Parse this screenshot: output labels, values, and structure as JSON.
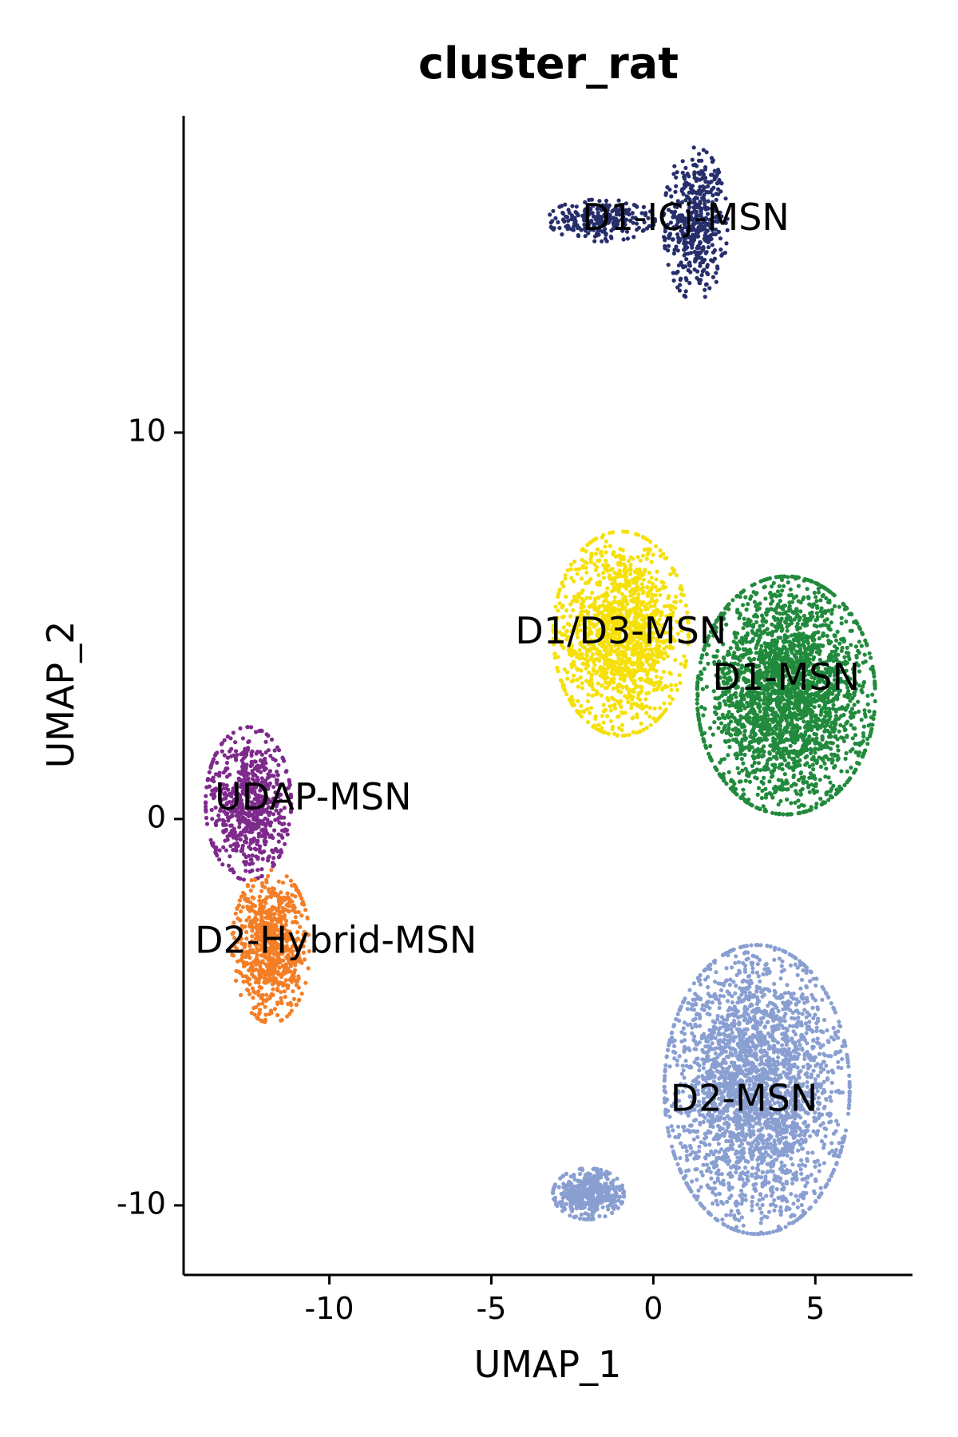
{
  "chart_data": {
    "type": "scatter",
    "title": "cluster_rat",
    "xlabel": "UMAP_1",
    "ylabel": "UMAP_2",
    "xlim": [
      -14.5,
      8
    ],
    "ylim": [
      -11.8,
      18.2
    ],
    "xticks": [
      -10,
      -5,
      0,
      5
    ],
    "yticks": [
      -10,
      0,
      10
    ],
    "grid": false,
    "legend": "none",
    "series": [
      {
        "name": "D1-ICj-MSN",
        "color": "#262E6B",
        "label_pos": [
          1.0,
          15.5
        ],
        "point_count": 700,
        "blobs": [
          {
            "cx": 1.3,
            "cy": 15.4,
            "sx": 0.45,
            "sy": 0.9,
            "w": 0.65
          },
          {
            "cx": -1.6,
            "cy": 15.5,
            "sx": 0.75,
            "sy": 0.25,
            "w": 0.35
          }
        ]
      },
      {
        "name": "D1/D3-MSN",
        "color": "#F5E00A",
        "label_pos": [
          -1.0,
          4.8
        ],
        "point_count": 1400,
        "blobs": [
          {
            "cx": -1.0,
            "cy": 4.8,
            "sx": 0.95,
            "sy": 1.2,
            "w": 1.0
          }
        ]
      },
      {
        "name": "D1-MSN",
        "color": "#218A3C",
        "label_pos": [
          4.1,
          3.6
        ],
        "point_count": 2600,
        "blobs": [
          {
            "cx": 4.1,
            "cy": 3.2,
            "sx": 1.25,
            "sy": 1.4,
            "w": 1.0
          }
        ]
      },
      {
        "name": "UDAP-MSN",
        "color": "#7E2A8C",
        "label_pos": [
          -10.5,
          0.5
        ],
        "point_count": 700,
        "blobs": [
          {
            "cx": -12.5,
            "cy": 0.4,
            "sx": 0.6,
            "sy": 0.9,
            "w": 1.0
          }
        ]
      },
      {
        "name": "D2-Hybrid-MSN",
        "color": "#F47E26",
        "label_pos": [
          -9.8,
          -3.2
        ],
        "point_count": 750,
        "blobs": [
          {
            "cx": -11.8,
            "cy": -3.3,
            "sx": 0.55,
            "sy": 0.9,
            "w": 1.0
          }
        ]
      },
      {
        "name": "D2-MSN",
        "color": "#8A9FD1",
        "label_pos": [
          2.8,
          -7.3
        ],
        "point_count": 3200,
        "blobs": [
          {
            "cx": 3.2,
            "cy": -7.0,
            "sx": 1.3,
            "sy": 1.7,
            "w": 0.85
          },
          {
            "cx": -2.0,
            "cy": -9.7,
            "sx": 0.5,
            "sy": 0.3,
            "w": 0.15
          }
        ]
      }
    ]
  }
}
